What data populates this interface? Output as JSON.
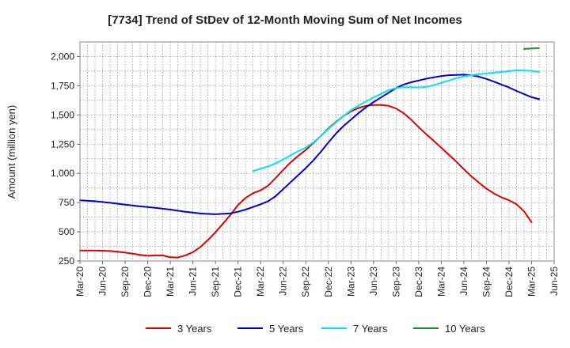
{
  "chart_data": {
    "type": "line",
    "title": "[7734]  Trend of StDev of 12-Month Moving Sum of Net Incomes",
    "ylabel": "Amount (million yen)",
    "xlabel": "",
    "ylim": [
      250,
      2125
    ],
    "yticks": [
      250,
      500,
      750,
      1000,
      1250,
      1500,
      1750,
      2000
    ],
    "ytick_labels": [
      "250",
      "500",
      "750",
      "1,000",
      "1,250",
      "1,500",
      "1,750",
      "2,000"
    ],
    "xticks": [
      "Mar-20",
      "Jun-20",
      "Sep-20",
      "Dec-20",
      "Mar-21",
      "Jun-21",
      "Sep-21",
      "Dec-21",
      "Mar-22",
      "Jun-22",
      "Sep-22",
      "Dec-22",
      "Mar-23",
      "Jun-23",
      "Sep-23",
      "Dec-23",
      "Mar-24",
      "Jun-24",
      "Sep-24",
      "Dec-24",
      "Mar-25",
      "Jun-25"
    ],
    "grid": true,
    "legend_position": "bottom",
    "series": [
      {
        "name": "3 Years",
        "color": "#e00000",
        "points": [
          [
            "Mar-20",
            340
          ],
          [
            "Apr-20",
            340
          ],
          [
            "May-20",
            340
          ],
          [
            "Jun-20",
            338
          ],
          [
            "Jul-20",
            335
          ],
          [
            "Aug-20",
            330
          ],
          [
            "Sep-20",
            322
          ],
          [
            "Oct-20",
            312
          ],
          [
            "Nov-20",
            303
          ],
          [
            "Dec-20",
            295
          ],
          [
            "Jan-21",
            298
          ],
          [
            "Feb-21",
            298
          ],
          [
            "Mar-21",
            282
          ],
          [
            "Apr-21",
            280
          ],
          [
            "May-21",
            298
          ],
          [
            "Jun-21",
            325
          ],
          [
            "Jul-21",
            370
          ],
          [
            "Aug-21",
            430
          ],
          [
            "Sep-21",
            495
          ],
          [
            "Oct-21",
            570
          ],
          [
            "Nov-21",
            645
          ],
          [
            "Dec-21",
            730
          ],
          [
            "Jan-22",
            790
          ],
          [
            "Feb-22",
            830
          ],
          [
            "Mar-22",
            855
          ],
          [
            "Apr-22",
            895
          ],
          [
            "May-22",
            960
          ],
          [
            "Jun-22",
            1030
          ],
          [
            "Jul-22",
            1095
          ],
          [
            "Aug-22",
            1150
          ],
          [
            "Sep-22",
            1200
          ],
          [
            "Oct-22",
            1260
          ],
          [
            "Nov-22",
            1320
          ],
          [
            "Dec-22",
            1385
          ],
          [
            "Jan-23",
            1440
          ],
          [
            "Feb-23",
            1490
          ],
          [
            "Mar-23",
            1530
          ],
          [
            "Apr-23",
            1560
          ],
          [
            "May-23",
            1578
          ],
          [
            "Jun-23",
            1585
          ],
          [
            "Jul-23",
            1585
          ],
          [
            "Aug-23",
            1578
          ],
          [
            "Sep-23",
            1555
          ],
          [
            "Oct-23",
            1515
          ],
          [
            "Nov-23",
            1460
          ],
          [
            "Dec-23",
            1395
          ],
          [
            "Jan-24",
            1335
          ],
          [
            "Feb-24",
            1278
          ],
          [
            "Mar-24",
            1220
          ],
          [
            "Apr-24",
            1160
          ],
          [
            "May-24",
            1100
          ],
          [
            "Jun-24",
            1035
          ],
          [
            "Jul-24",
            975
          ],
          [
            "Aug-24",
            920
          ],
          [
            "Sep-24",
            870
          ],
          [
            "Oct-24",
            828
          ],
          [
            "Nov-24",
            795
          ],
          [
            "Dec-24",
            770
          ],
          [
            "Jan-25",
            735
          ],
          [
            "Feb-25",
            675
          ],
          [
            "Mar-25",
            580
          ]
        ]
      },
      {
        "name": "5 Years",
        "color": "#0000cc",
        "points": [
          [
            "Mar-20",
            770
          ],
          [
            "May-20",
            762
          ],
          [
            "Jul-20",
            748
          ],
          [
            "Sep-20",
            732
          ],
          [
            "Nov-20",
            718
          ],
          [
            "Jan-21",
            705
          ],
          [
            "Mar-21",
            690
          ],
          [
            "May-21",
            672
          ],
          [
            "Jul-21",
            657
          ],
          [
            "Sep-21",
            650
          ],
          [
            "Nov-21",
            658
          ],
          [
            "Dec-21",
            672
          ],
          [
            "Jan-22",
            690
          ],
          [
            "Feb-22",
            712
          ],
          [
            "Mar-22",
            735
          ],
          [
            "Apr-22",
            762
          ],
          [
            "May-22",
            805
          ],
          [
            "Jun-22",
            865
          ],
          [
            "Jul-22",
            925
          ],
          [
            "Aug-22",
            985
          ],
          [
            "Sep-22",
            1045
          ],
          [
            "Oct-22",
            1110
          ],
          [
            "Nov-22",
            1185
          ],
          [
            "Dec-22",
            1265
          ],
          [
            "Jan-23",
            1340
          ],
          [
            "Feb-23",
            1405
          ],
          [
            "Mar-23",
            1460
          ],
          [
            "Apr-23",
            1515
          ],
          [
            "May-23",
            1565
          ],
          [
            "Jun-23",
            1610
          ],
          [
            "Jul-23",
            1650
          ],
          [
            "Aug-23",
            1690
          ],
          [
            "Sep-23",
            1730
          ],
          [
            "Oct-23",
            1760
          ],
          [
            "Nov-23",
            1780
          ],
          [
            "Dec-23",
            1795
          ],
          [
            "Jan-24",
            1810
          ],
          [
            "Feb-24",
            1822
          ],
          [
            "Mar-24",
            1833
          ],
          [
            "Apr-24",
            1840
          ],
          [
            "May-24",
            1843
          ],
          [
            "Jun-24",
            1845
          ],
          [
            "Jul-24",
            1840
          ],
          [
            "Aug-24",
            1828
          ],
          [
            "Sep-24",
            1808
          ],
          [
            "Oct-24",
            1785
          ],
          [
            "Nov-24",
            1760
          ],
          [
            "Dec-24",
            1735
          ],
          [
            "Jan-25",
            1705
          ],
          [
            "Feb-25",
            1678
          ],
          [
            "Mar-25",
            1652
          ],
          [
            "Apr-25",
            1635
          ]
        ]
      },
      {
        "name": "7 Years",
        "color": "#00e5ee",
        "points": [
          [
            "Feb-22",
            1020
          ],
          [
            "Mar-22",
            1040
          ],
          [
            "Apr-22",
            1060
          ],
          [
            "May-22",
            1085
          ],
          [
            "Jun-22",
            1120
          ],
          [
            "Jul-22",
            1155
          ],
          [
            "Aug-22",
            1190
          ],
          [
            "Sep-22",
            1220
          ],
          [
            "Oct-22",
            1265
          ],
          [
            "Nov-22",
            1320
          ],
          [
            "Dec-22",
            1380
          ],
          [
            "Jan-23",
            1435
          ],
          [
            "Feb-23",
            1490
          ],
          [
            "Mar-23",
            1540
          ],
          [
            "Apr-23",
            1580
          ],
          [
            "May-23",
            1615
          ],
          [
            "Jun-23",
            1650
          ],
          [
            "Jul-23",
            1680
          ],
          [
            "Aug-23",
            1712
          ],
          [
            "Sep-23",
            1730
          ],
          [
            "Oct-23",
            1738
          ],
          [
            "Nov-23",
            1738
          ],
          [
            "Dec-23",
            1735
          ],
          [
            "Jan-24",
            1740
          ],
          [
            "Feb-24",
            1755
          ],
          [
            "Mar-24",
            1775
          ],
          [
            "Apr-24",
            1795
          ],
          [
            "May-24",
            1815
          ],
          [
            "Jun-24",
            1830
          ],
          [
            "Jul-24",
            1840
          ],
          [
            "Aug-24",
            1848
          ],
          [
            "Sep-24",
            1855
          ],
          [
            "Oct-24",
            1862
          ],
          [
            "Nov-24",
            1868
          ],
          [
            "Dec-24",
            1875
          ],
          [
            "Jan-25",
            1882
          ],
          [
            "Feb-25",
            1880
          ],
          [
            "Mar-25",
            1878
          ],
          [
            "Apr-25",
            1868
          ]
        ]
      },
      {
        "name": "10 Years",
        "color": "#228b22",
        "points": [
          [
            "Feb-25",
            2065
          ],
          [
            "Apr-25",
            2072
          ]
        ]
      }
    ]
  }
}
